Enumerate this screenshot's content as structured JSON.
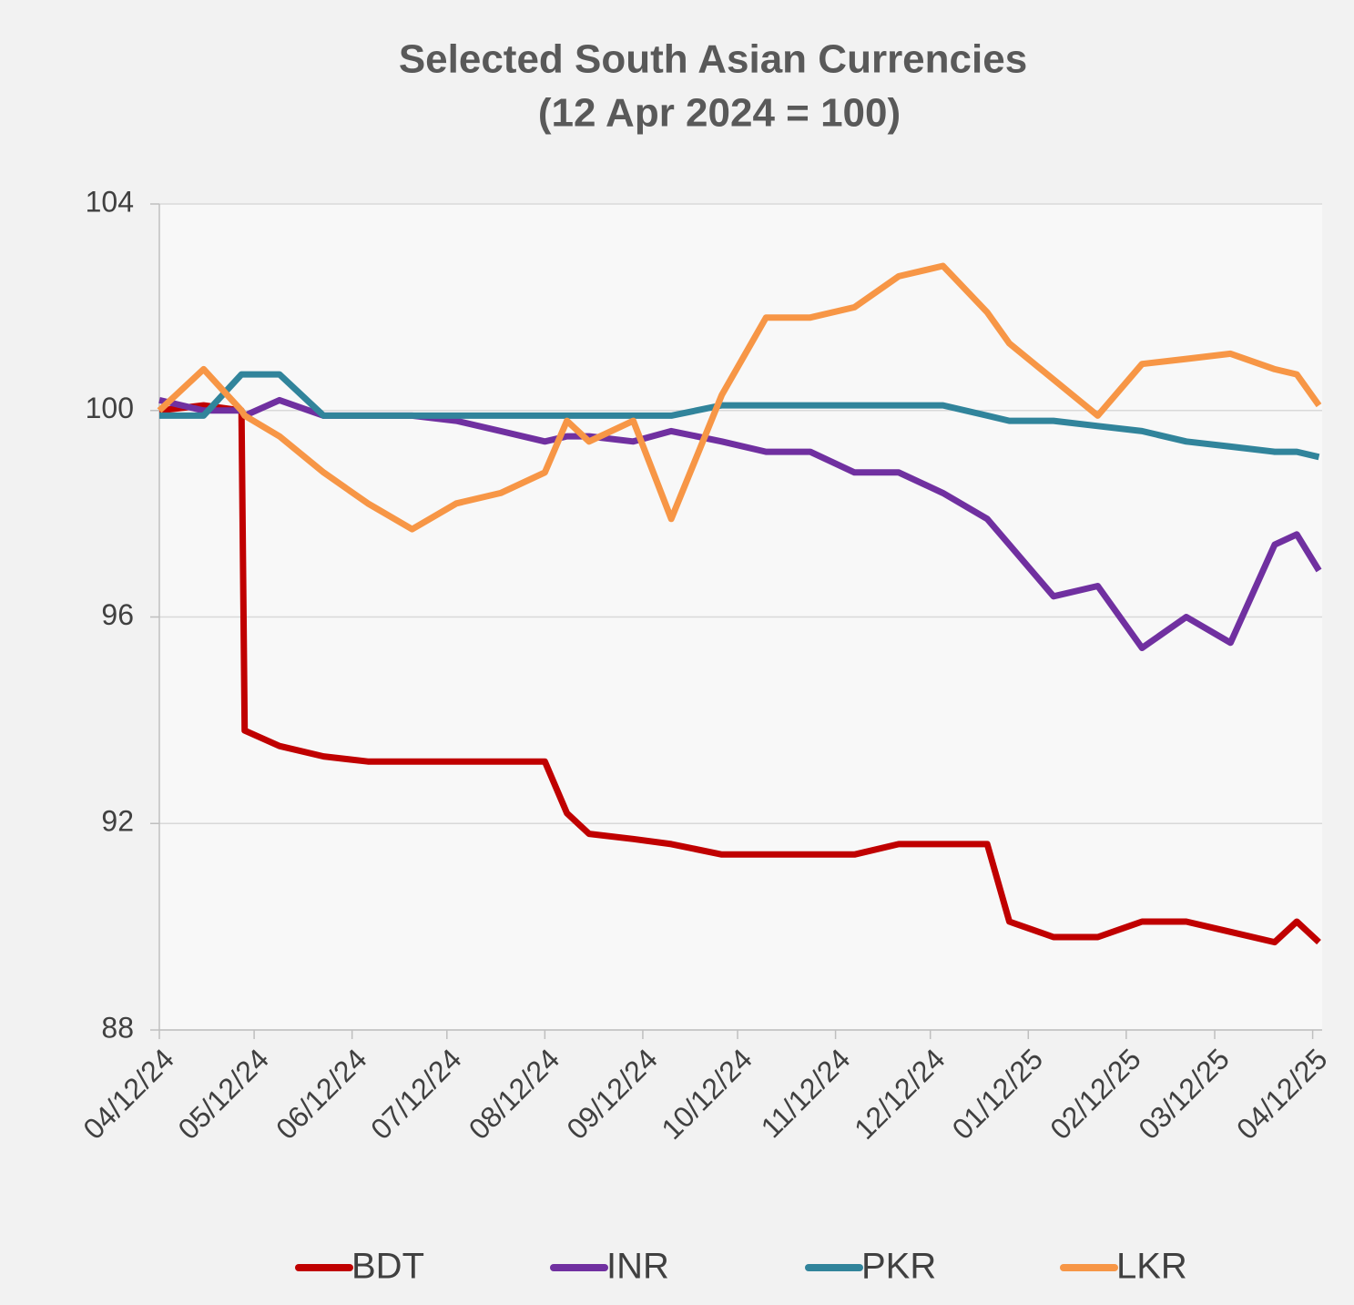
{
  "chart_data": {
    "type": "line",
    "title": "Selected South Asian Currencies",
    "subtitle": "(12 Apr 2024 = 100)",
    "x": [
      "04/12/24",
      "04/26/24",
      "05/08/24",
      "05/09/24",
      "05/20/24",
      "06/03/24",
      "06/17/24",
      "07/01/24",
      "07/15/24",
      "07/29/24",
      "08/12/24",
      "08/19/24",
      "08/26/24",
      "09/09/24",
      "09/21/24",
      "10/07/24",
      "10/21/24",
      "11/04/24",
      "11/18/24",
      "12/02/24",
      "12/16/24",
      "12/30/24",
      "01/06/25",
      "01/20/25",
      "02/03/25",
      "02/17/25",
      "03/03/25",
      "03/17/25",
      "03/31/25",
      "04/07/25",
      "04/14/25"
    ],
    "series": [
      {
        "name": "BDT",
        "color": "#c00000",
        "values": [
          100,
          100.1,
          100,
          93.8,
          93.5,
          93.3,
          93.2,
          93.2,
          93.2,
          93.2,
          93.2,
          92.2,
          91.8,
          91.7,
          91.6,
          91.4,
          91.4,
          91.4,
          91.4,
          91.6,
          91.6,
          91.6,
          90.1,
          89.8,
          89.8,
          90.1,
          90.1,
          89.9,
          89.7,
          90.1,
          89.7
        ]
      },
      {
        "name": "INR",
        "color": "#7030a0",
        "values": [
          100.2,
          100,
          100,
          99.9,
          100.2,
          99.9,
          99.9,
          99.9,
          99.8,
          99.6,
          99.4,
          99.5,
          99.5,
          99.4,
          99.6,
          99.4,
          99.2,
          99.2,
          98.8,
          98.8,
          98.4,
          97.9,
          97.4,
          96.4,
          96.6,
          95.4,
          96.0,
          95.5,
          97.4,
          97.6,
          96.9
        ]
      },
      {
        "name": "PKR",
        "color": "#31849b",
        "values": [
          99.9,
          99.9,
          100.7,
          100.7,
          100.7,
          99.9,
          99.9,
          99.9,
          99.9,
          99.9,
          99.9,
          99.9,
          99.9,
          99.9,
          99.9,
          100.1,
          100.1,
          100.1,
          100.1,
          100.1,
          100.1,
          99.9,
          99.8,
          99.8,
          99.7,
          99.6,
          99.4,
          99.3,
          99.2,
          99.2,
          99.1
        ]
      },
      {
        "name": "LKR",
        "color": "#f79646",
        "values": [
          100,
          100.8,
          100,
          99.9,
          99.5,
          98.8,
          98.2,
          97.7,
          98.2,
          98.4,
          98.8,
          99.8,
          99.4,
          99.8,
          97.9,
          100.3,
          101.8,
          101.8,
          102.0,
          102.6,
          102.8,
          101.9,
          101.3,
          100.6,
          99.9,
          100.9,
          101.0,
          101.1,
          100.8,
          100.7,
          100.1
        ]
      }
    ],
    "xlim": [
      "04/12/24",
      "04/15/25"
    ],
    "xticks": [
      "04/12/24",
      "05/12/24",
      "06/12/24",
      "07/12/24",
      "08/12/24",
      "09/12/24",
      "10/12/24",
      "11/12/24",
      "12/12/24",
      "01/12/25",
      "02/12/25",
      "03/12/25",
      "04/12/25"
    ],
    "ylim": [
      88,
      104
    ],
    "yticks": [
      88,
      92,
      96,
      100,
      104
    ],
    "grid": true
  }
}
